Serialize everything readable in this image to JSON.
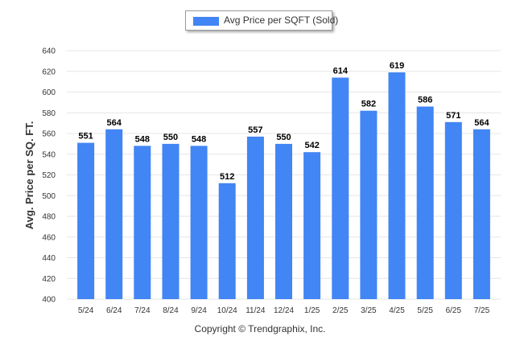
{
  "legend": {
    "label": "Avg Price per SQFT (Sold)"
  },
  "footer": {
    "copyright": "Copyright © Trendgraphix, Inc."
  },
  "colors": {
    "bar": "#4285f4",
    "grid": "#e6e6e6",
    "axis_text": "#333333",
    "value_label": "#000000"
  },
  "chart_data": {
    "type": "bar",
    "title": "",
    "xlabel": "",
    "ylabel": "Avg. Price per SQ. FT.",
    "categories": [
      "5/24",
      "6/24",
      "7/24",
      "8/24",
      "9/24",
      "10/24",
      "11/24",
      "12/24",
      "1/25",
      "2/25",
      "3/25",
      "4/25",
      "5/25",
      "6/25",
      "7/25"
    ],
    "series": [
      {
        "name": "Avg Price per SQFT (Sold)",
        "values": [
          551,
          564,
          548,
          550,
          548,
          512,
          557,
          550,
          542,
          614,
          582,
          619,
          586,
          571,
          564
        ]
      }
    ],
    "ylim": [
      400,
      640
    ],
    "yticks": [
      400,
      420,
      440,
      460,
      480,
      500,
      520,
      540,
      560,
      580,
      600,
      620,
      640
    ],
    "grid": true,
    "legend_position": "top-center",
    "data_labels": true
  }
}
